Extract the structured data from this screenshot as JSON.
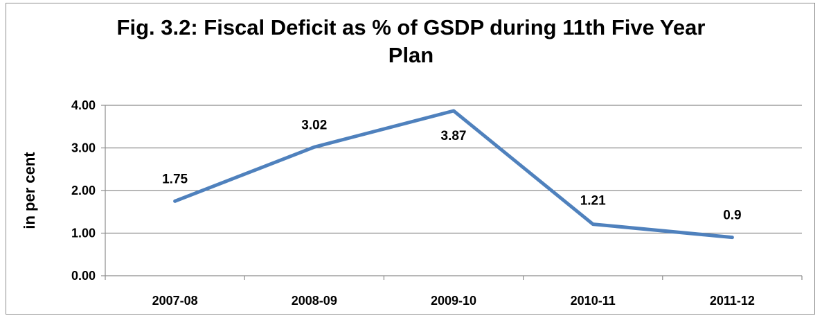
{
  "chart_data": {
    "type": "line",
    "title": "Fig. 3.2: Fiscal Deficit as % of GSDP during 11th Five Year\nPlan",
    "xlabel": "",
    "ylabel": "in per cent",
    "categories": [
      "2007-08",
      "2008-09",
      "2009-10",
      "2010-11",
      "2011-12"
    ],
    "series": [
      {
        "values": [
          1.75,
          3.02,
          3.87,
          1.21,
          0.9
        ],
        "labels": [
          "1.75",
          "3.02",
          "3.87",
          "1.21",
          "0.9"
        ],
        "color": "#4f81bd"
      }
    ],
    "y_ticks": [
      "0.00",
      "1.00",
      "2.00",
      "3.00",
      "4.00"
    ],
    "ylim": [
      0,
      4
    ],
    "grid": true,
    "legend": "none"
  }
}
